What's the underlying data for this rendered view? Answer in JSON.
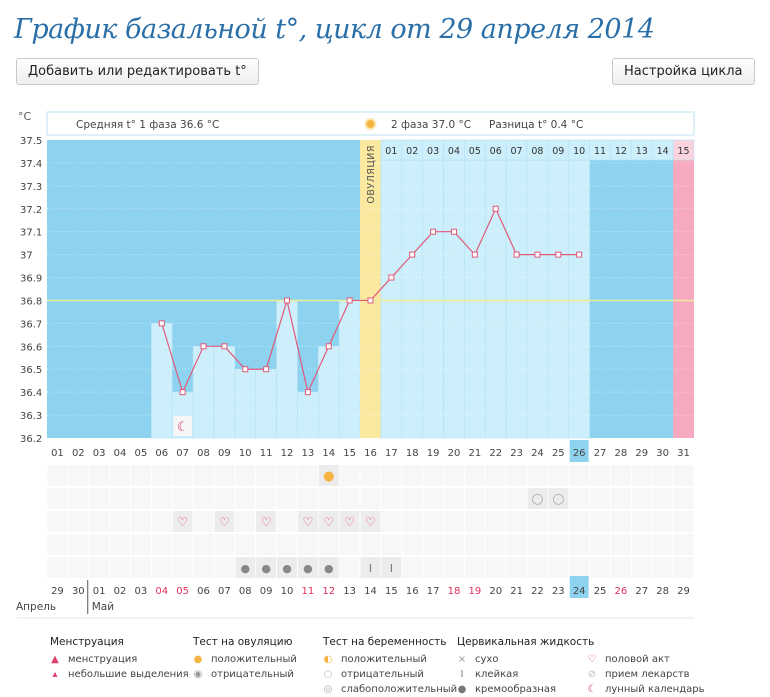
{
  "title": "График базальной t°, цикл от 29 апреля 2014",
  "buttons": {
    "edit": "Добавить или редактировать t°",
    "settings": "Настройка цикла"
  },
  "header": {
    "unit": "°C",
    "phase1": "Средняя t° 1 фаза 36.6 °C",
    "phase2": "2 фаза 37.0 °C",
    "diff": "Разница t° 0.4 °C",
    "ovulation": "ОВУЛЯЦИЯ"
  },
  "colors": {
    "dark": "#8dd3ef",
    "light": "#cdeefb",
    "ovu": "#fbe9a0",
    "pink": "#f7a9bf",
    "line": "#e05a7a",
    "cover": "#ecec9a"
  },
  "chart_data": {
    "type": "line",
    "title": "График базальной t°",
    "ylabel": "°C",
    "ylim": [
      36.2,
      37.5
    ],
    "yticks": [
      "37.5",
      "37.4",
      "37.3",
      "37.2",
      "37.1",
      "37",
      "36.9",
      "36.8",
      "36.7",
      "36.6",
      "36.5",
      "36.4",
      "36.3",
      "36.2"
    ],
    "cycle_days": [
      "01",
      "02",
      "03",
      "04",
      "05",
      "06",
      "07",
      "08",
      "09",
      "10",
      "11",
      "12",
      "13",
      "14",
      "15",
      "16",
      "17",
      "18",
      "19",
      "20",
      "21",
      "22",
      "23",
      "24",
      "25",
      "26",
      "27",
      "28",
      "29",
      "30",
      "31"
    ],
    "temps": [
      null,
      null,
      null,
      null,
      null,
      36.7,
      36.4,
      36.6,
      36.6,
      36.5,
      36.5,
      36.8,
      36.4,
      36.6,
      36.8,
      36.8,
      36.9,
      37.0,
      37.1,
      37.1,
      37.0,
      37.2,
      37.0,
      37.0,
      37.0,
      37.0,
      null,
      null,
      null,
      null,
      null
    ],
    "coverline": 36.8,
    "ovulation_day": 16,
    "current_day": 26,
    "next_cycle_day": 31,
    "phase2_days": [
      "01",
      "02",
      "03",
      "04",
      "05",
      "06",
      "07",
      "08",
      "09",
      "10",
      "11",
      "12",
      "13",
      "14",
      "15"
    ],
    "dates": [
      "29",
      "30",
      "01",
      "02",
      "03",
      "04",
      "05",
      "06",
      "07",
      "08",
      "09",
      "10",
      "11",
      "12",
      "13",
      "14",
      "15",
      "16",
      "17",
      "18",
      "19",
      "20",
      "21",
      "22",
      "23",
      "24",
      "25",
      "26",
      "27",
      "28",
      "29"
    ],
    "weekend_dates": [
      5,
      6,
      12,
      13,
      19,
      20,
      27
    ],
    "current_date_index": 25,
    "months": [
      "Апрель",
      "Май"
    ],
    "ovulation_test_positive": [
      14
    ],
    "pregnancy_test_negative": [
      24,
      25
    ],
    "intercourse": [
      7,
      9,
      11,
      13,
      14,
      15,
      16
    ],
    "cervical_creamy": [
      10,
      11,
      12,
      13,
      14
    ],
    "cervical_sticky": [
      16,
      17
    ],
    "lunar": [
      7
    ]
  },
  "legend": [
    {
      "head": "Менструация",
      "items": [
        [
          "menstruation-icon",
          "менструация",
          "#e0406a",
          "▲"
        ],
        [
          "light-spotting-icon",
          "небольшие выделения",
          "#e0406a",
          "▴"
        ]
      ]
    },
    {
      "head": "Тест на овуляцию",
      "items": [
        [
          "ovulation-positive-icon",
          "положительный",
          "#f5b342",
          "●"
        ],
        [
          "ovulation-negative-icon",
          "отрицательный",
          "#999",
          "◉"
        ]
      ]
    },
    {
      "head": "Тест на беременность",
      "items": [
        [
          "pregnancy-positive-icon",
          "положительный",
          "#f5b342",
          "◐"
        ],
        [
          "pregnancy-negative-icon",
          "отрицательный",
          "#bbb",
          "○"
        ],
        [
          "pregnancy-weak-icon",
          "слабоположительный",
          "#aaa",
          "◎"
        ]
      ]
    },
    {
      "head": "Цервикальная жидкость",
      "items": [
        [
          "dry-icon",
          "сухо",
          "#999",
          "×"
        ],
        [
          "sticky-icon",
          "клейкая",
          "#777",
          "I"
        ],
        [
          "creamy-icon",
          "кремообразная",
          "#777",
          "●"
        ]
      ]
    },
    {
      "head": "",
      "items": [
        [
          "intercourse-icon",
          "половой акт",
          "#e0406a",
          "♡"
        ],
        [
          "medication-icon",
          "прием лекарств",
          "#bbb",
          "⊘"
        ],
        [
          "lunar-icon",
          "лунный календарь",
          "#d0305a",
          "☾"
        ]
      ]
    }
  ]
}
